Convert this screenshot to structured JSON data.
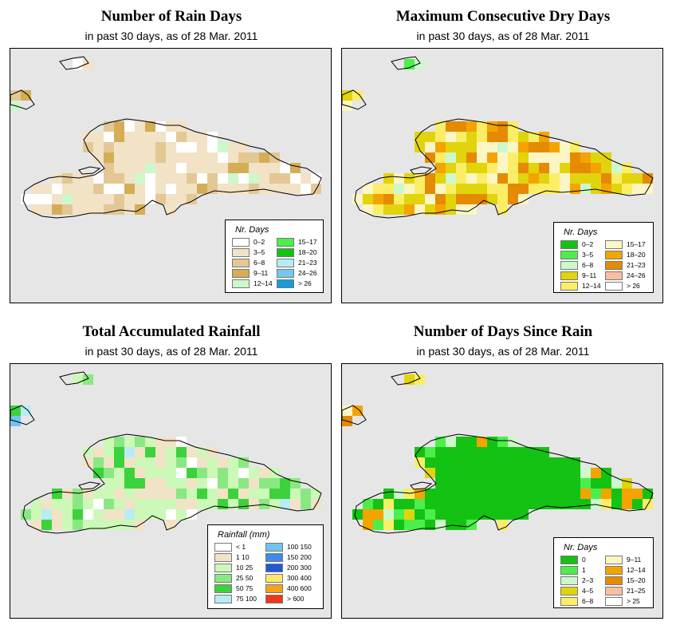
{
  "panels": [
    {
      "title": "Number of Rain Days",
      "subtitle": "in past 30 days, as of  28 Mar. 2011",
      "legend_title": "Nr. Days",
      "legend_items": [
        {
          "label": "0–2",
          "color": "#ffffff"
        },
        {
          "label": "3–5",
          "color": "#f2e2c6"
        },
        {
          "label": "6–8",
          "color": "#e3c896"
        },
        {
          "label": "9–11",
          "color": "#d4ad56"
        },
        {
          "label": "12–14",
          "color": "#ccf8cc"
        },
        {
          "label": "15–17",
          "color": "#4cee4c"
        },
        {
          "label": "18–20",
          "color": "#13c213"
        },
        {
          "label": "21–23",
          "color": "#b8ecf4"
        },
        {
          "label": "24–26",
          "color": "#72c8ee"
        },
        {
          "label": "> 26",
          "color": "#1a9ada"
        }
      ]
    },
    {
      "title": "Maximum Consecutive Dry Days",
      "subtitle": "in past 30 days, as of  28 Mar. 2011",
      "legend_title": "Nr. Days",
      "legend_items": [
        {
          "label": "0–2",
          "color": "#13c213"
        },
        {
          "label": "3–5",
          "color": "#4cee4c"
        },
        {
          "label": "6–8",
          "color": "#ccf8cc"
        },
        {
          "label": "9–11",
          "color": "#e1d40c"
        },
        {
          "label": "12–14",
          "color": "#fbee66"
        },
        {
          "label": "15–17",
          "color": "#fcf6c4"
        },
        {
          "label": "18–20",
          "color": "#f4a400"
        },
        {
          "label": "21–23",
          "color": "#e58a04"
        },
        {
          "label": "24–26",
          "color": "#f9bf9f"
        },
        {
          "label": "> 26",
          "color": "#ffffff"
        }
      ]
    },
    {
      "title": "Total Accumulated Rainfall",
      "subtitle": "in past 30 days, as of  28 Mar. 2011",
      "legend_title": "Rainfall (mm)",
      "legend_items": [
        {
          "label": "< 1",
          "color": "#ffffff"
        },
        {
          "label": "1    10",
          "color": "#f2e2c6"
        },
        {
          "label": "10    25",
          "color": "#ccf8b8"
        },
        {
          "label": "25    50",
          "color": "#8ae882"
        },
        {
          "label": "50    75",
          "color": "#3cd23c"
        },
        {
          "label": "75   100",
          "color": "#b8ecf4"
        },
        {
          "label": "100   150",
          "color": "#70c4f0"
        },
        {
          "label": "150   200",
          "color": "#3a8ce6"
        },
        {
          "label": "200   300",
          "color": "#2457d8"
        },
        {
          "label": "300   400",
          "color": "#fce86c"
        },
        {
          "label": "400   600",
          "color": "#f7a21a"
        },
        {
          "label": "> 600",
          "color": "#f2361a"
        }
      ]
    },
    {
      "title": "Number of Days Since Rain",
      "subtitle": "in past 30 days, as of  28 Mar. 2011",
      "legend_title": "Nr. Days",
      "legend_items": [
        {
          "label": "0",
          "color": "#13c213"
        },
        {
          "label": "1",
          "color": "#4cee4c"
        },
        {
          "label": "2–3",
          "color": "#ccf8cc"
        },
        {
          "label": "4–5",
          "color": "#e1d40c"
        },
        {
          "label": "6–8",
          "color": "#fbee66"
        },
        {
          "label": "9–11",
          "color": "#fcf6c4"
        },
        {
          "label": "12–14",
          "color": "#f4a400"
        },
        {
          "label": "15–20",
          "color": "#e58a04"
        },
        {
          "label": "21–25",
          "color": "#f9bf9f"
        },
        {
          "label": "> 25",
          "color": "#ffffff"
        }
      ]
    }
  ]
}
